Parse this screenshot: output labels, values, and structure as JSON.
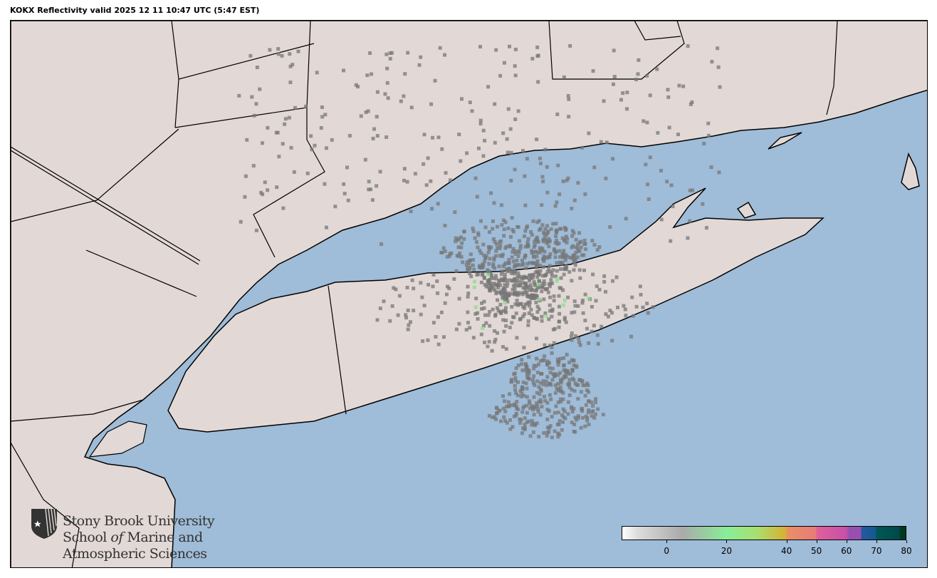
{
  "title": "KOKX Reflectivity valid 2025 12 11 10:47 UTC (5:47 EST)",
  "colors": {
    "ocean": "#9fbcd8",
    "land": "#e2d9d6",
    "border": "#000000"
  },
  "radar_site": "KOKX",
  "colorbar": {
    "range": [
      -15,
      80
    ],
    "ticks": [
      {
        "value": 0,
        "label": "0"
      },
      {
        "value": 20,
        "label": "20"
      },
      {
        "value": 40,
        "label": "40"
      },
      {
        "value": 50,
        "label": "50"
      },
      {
        "value": 60,
        "label": "60"
      },
      {
        "value": 70,
        "label": "70"
      },
      {
        "value": 80,
        "label": "80"
      }
    ]
  },
  "logo": {
    "line1": "Stony Brook University",
    "line2_a": "School ",
    "line2_b": "of",
    "line2_c": " Marine and",
    "line3": "Atmospheric Sciences"
  }
}
